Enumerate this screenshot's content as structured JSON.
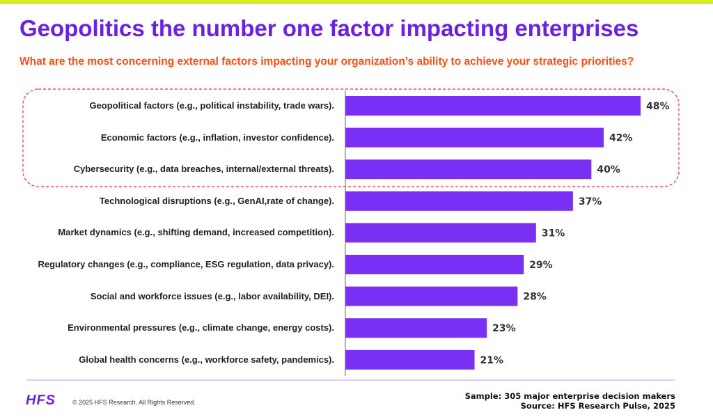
{
  "chart_data": {
    "type": "bar",
    "orientation": "horizontal",
    "title": "Geopolitics the number one factor impacting enterprises",
    "subtitle": "What are the most concerning external factors impacting your organization’s ability to achieve your strategic priorities?",
    "categories": [
      "Geopolitical factors (e.g., political instability, trade wars).",
      "Economic factors (e.g., inflation, investor confidence).",
      "Cybersecurity (e.g., data breaches, internal/external threats).",
      "Technological disruptions (e.g., GenAI,rate of change).",
      "Market dynamics (e.g., shifting demand, increased competition).",
      "Regulatory changes (e.g., compliance, ESG regulation, data privacy).",
      "Social and workforce issues (e.g., labor availability, DEI).",
      "Environmental pressures (e.g., climate change, energy costs).",
      "Global health concerns (e.g., workforce safety, pandemics)."
    ],
    "values": [
      48,
      42,
      40,
      37,
      31,
      29,
      28,
      23,
      21
    ],
    "value_labels": [
      "48%",
      "42%",
      "40%",
      "37%",
      "31%",
      "29%",
      "28%",
      "23%",
      "21%"
    ],
    "color": "#7a2ff5"
  },
  "footer": {
    "logo": "HFS",
    "copyright": "© 2025 HFS Research. All Rights Reserved.",
    "sample": "Sample: 305 major enterprise decision makers",
    "source": "Source: HFS Research Pulse, 2025"
  }
}
